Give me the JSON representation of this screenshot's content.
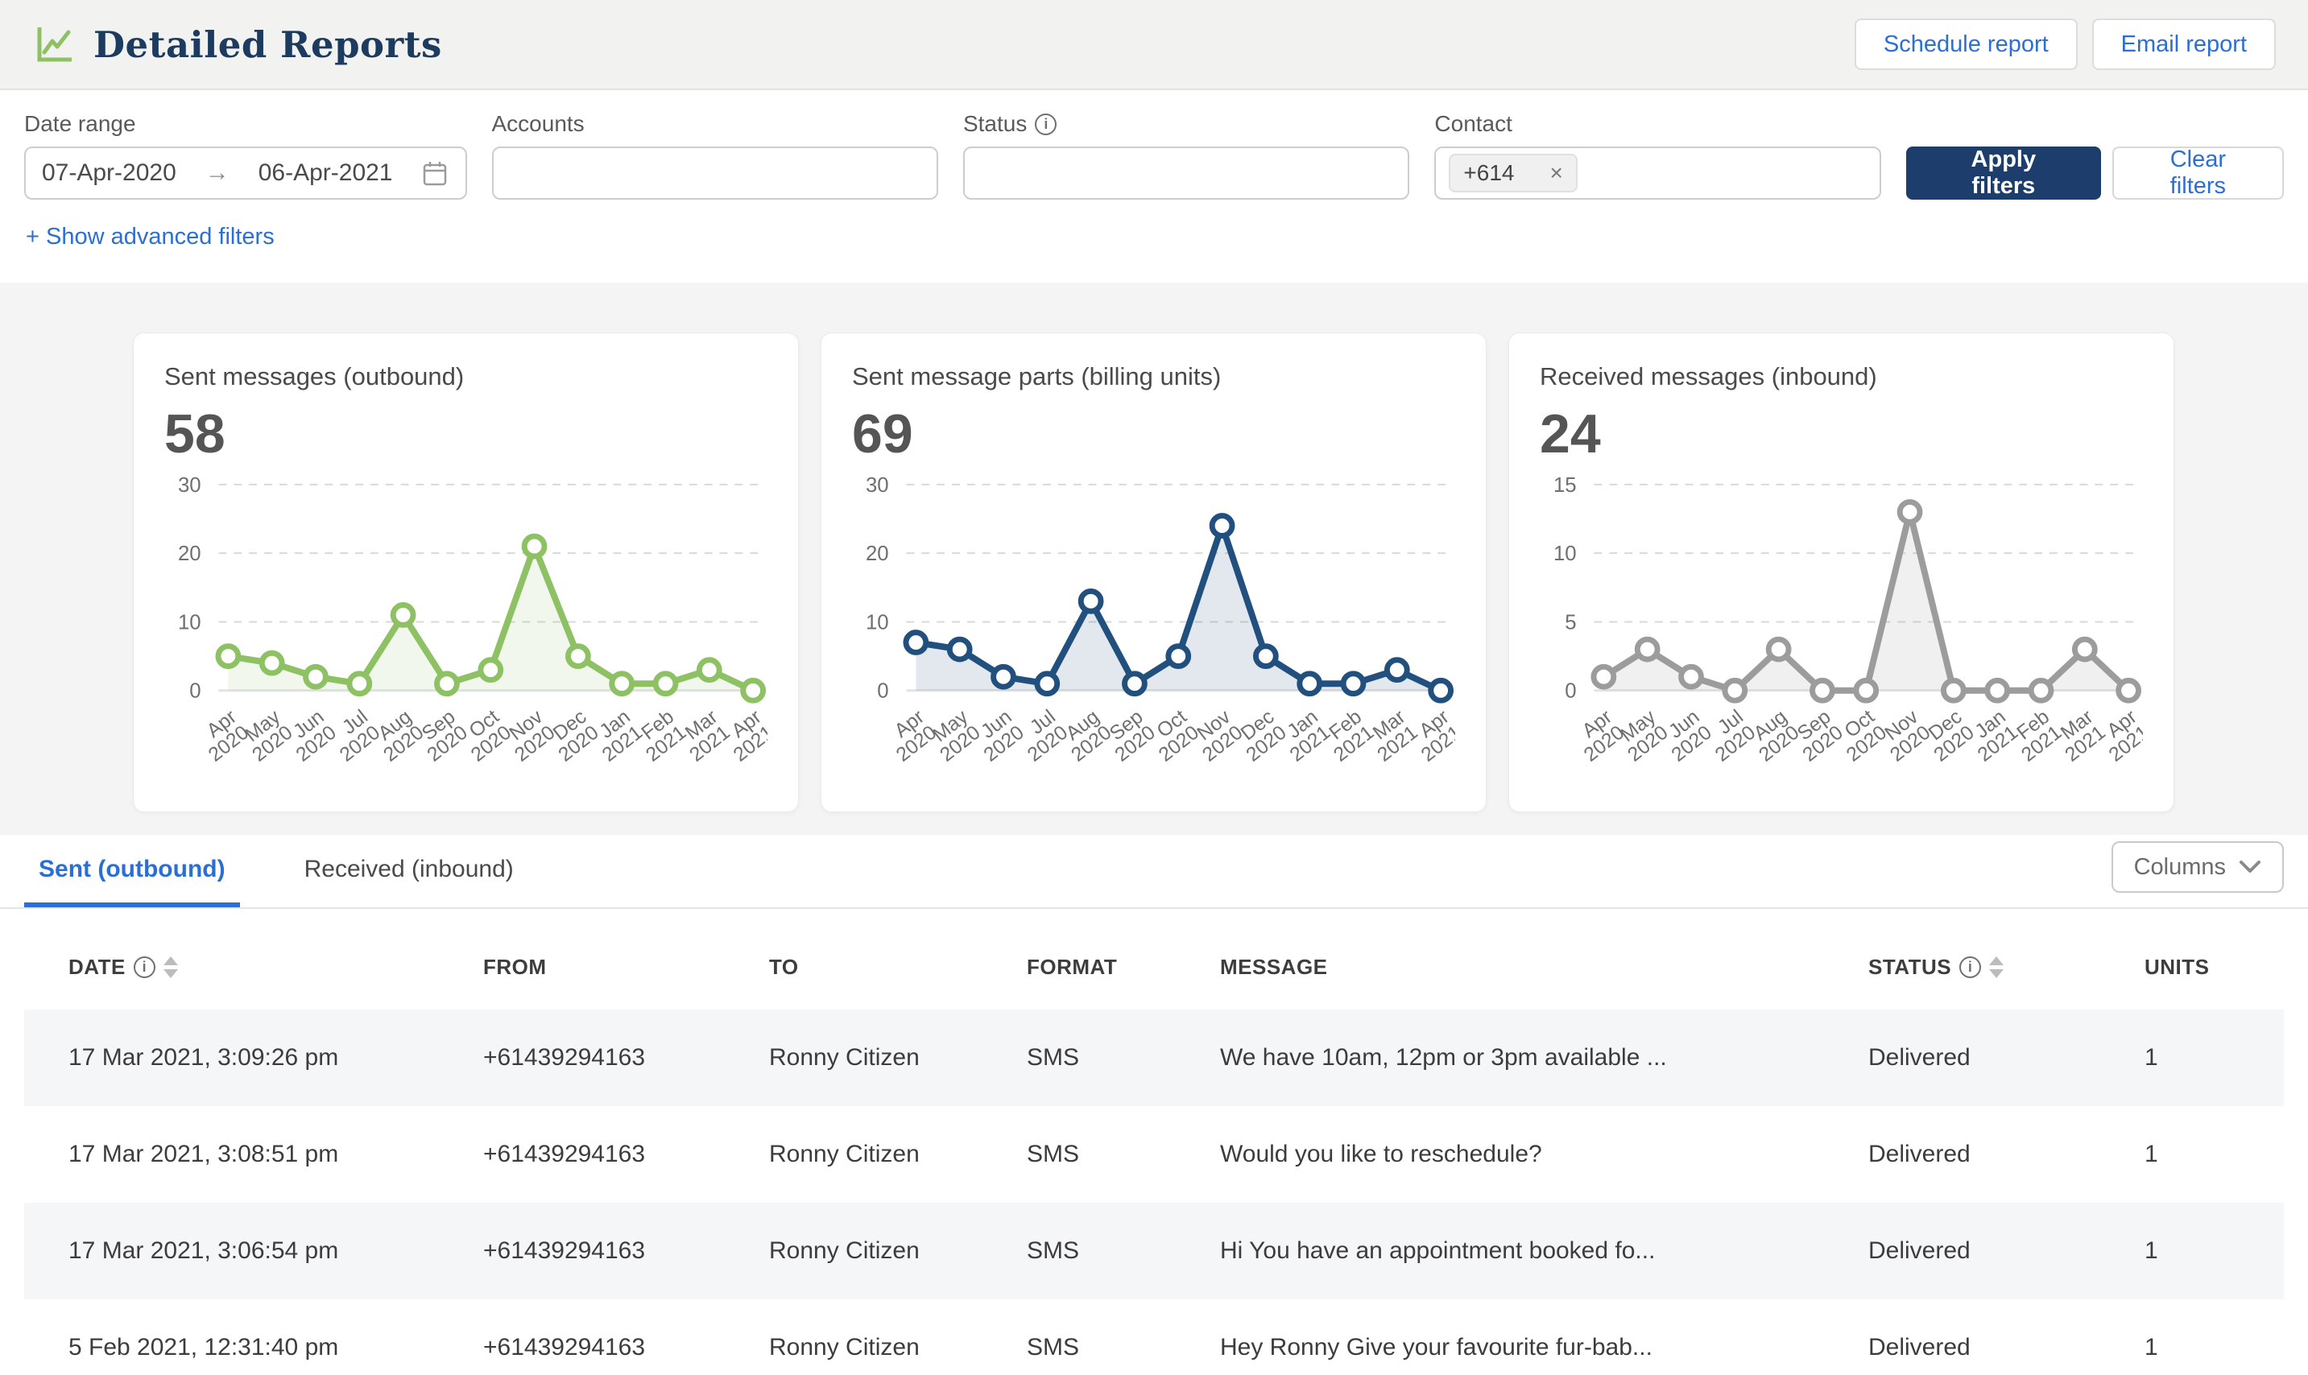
{
  "header": {
    "title": "Detailed Reports",
    "schedule_label": "Schedule report",
    "email_label": "Email report"
  },
  "filters": {
    "date_range": {
      "label": "Date range",
      "start": "07-Apr-2020",
      "arrow": "→",
      "end": "06-Apr-2021"
    },
    "accounts": {
      "label": "Accounts",
      "value": ""
    },
    "status": {
      "label": "Status",
      "value": ""
    },
    "contact": {
      "label": "Contact",
      "chip": "+614",
      "chip_remove": "×"
    },
    "apply_label": "Apply filters",
    "clear_label": "Clear filters",
    "advanced_label": "+ Show advanced filters"
  },
  "chart_data": [
    {
      "type": "line",
      "title": "Sent messages (outbound)",
      "total": "58",
      "color": "#8dc163",
      "fill": "rgba(141,193,99,0.12)",
      "categories": [
        "Apr 2020",
        "May 2020",
        "Jun 2020",
        "Jul 2020",
        "Aug 2020",
        "Sep 2020",
        "Oct 2020",
        "Nov 2020",
        "Dec 2020",
        "Jan 2021",
        "Feb 2021",
        "Mar 2021",
        "Apr 2021"
      ],
      "values": [
        5,
        4,
        2,
        1,
        11,
        1,
        3,
        21,
        5,
        1,
        1,
        3,
        0
      ],
      "ylim": [
        0,
        30
      ],
      "yticks": [
        0,
        10,
        20,
        30
      ],
      "xlabel": "",
      "ylabel": "",
      "grid": "dashed-horizontal",
      "legend": "none"
    },
    {
      "type": "line",
      "title": "Sent message parts (billing units)",
      "total": "69",
      "color": "#21507f",
      "fill": "rgba(33,80,127,0.13)",
      "categories": [
        "Apr 2020",
        "May 2020",
        "Jun 2020",
        "Jul 2020",
        "Aug 2020",
        "Sep 2020",
        "Oct 2020",
        "Nov 2020",
        "Dec 2020",
        "Jan 2021",
        "Feb 2021",
        "Mar 2021",
        "Apr 2021"
      ],
      "values": [
        7,
        6,
        2,
        1,
        13,
        1,
        5,
        24,
        5,
        1,
        1,
        3,
        0
      ],
      "ylim": [
        0,
        30
      ],
      "yticks": [
        0,
        10,
        20,
        30
      ],
      "xlabel": "",
      "ylabel": "",
      "grid": "dashed-horizontal",
      "legend": "none"
    },
    {
      "type": "line",
      "title": "Received messages (inbound)",
      "total": "24",
      "color": "#9c9c9c",
      "fill": "rgba(150,150,150,0.14)",
      "categories": [
        "Apr 2020",
        "May 2020",
        "Jun 2020",
        "Jul 2020",
        "Aug 2020",
        "Sep 2020",
        "Oct 2020",
        "Nov 2020",
        "Dec 2020",
        "Jan 2021",
        "Feb 2021",
        "Mar 2021",
        "Apr 2021"
      ],
      "values": [
        1,
        3,
        1,
        0,
        3,
        0,
        0,
        13,
        0,
        0,
        0,
        3,
        0
      ],
      "ylim": [
        0,
        15
      ],
      "yticks": [
        0,
        5,
        10,
        15
      ],
      "xlabel": "",
      "ylabel": "",
      "grid": "dashed-horizontal",
      "legend": "none"
    }
  ],
  "tabs": {
    "sent_label": "Sent (outbound)",
    "received_label": "Received (inbound)",
    "columns_label": "Columns"
  },
  "table": {
    "columns": [
      "DATE",
      "FROM",
      "TO",
      "FORMAT",
      "MESSAGE",
      "STATUS",
      "UNITS"
    ],
    "rows": [
      {
        "date": "17 Mar 2021, 3:09:26 pm",
        "from": "+61439294163",
        "to": "Ronny Citizen",
        "format": "SMS",
        "message": "We have 10am, 12pm or 3pm available ...",
        "status": "Delivered",
        "units": "1"
      },
      {
        "date": "17 Mar 2021, 3:08:51 pm",
        "from": "+61439294163",
        "to": "Ronny Citizen",
        "format": "SMS",
        "message": "Would you like to reschedule?",
        "status": "Delivered",
        "units": "1"
      },
      {
        "date": "17 Mar 2021, 3:06:54 pm",
        "from": "+61439294163",
        "to": "Ronny Citizen",
        "format": "SMS",
        "message": "Hi You have an appointment booked fo...",
        "status": "Delivered",
        "units": "1"
      },
      {
        "date": "5 Feb 2021, 12:31:40 pm",
        "from": "+61439294163",
        "to": "Ronny Citizen",
        "format": "SMS",
        "message": "Hey Ronny Give your favourite fur-bab...",
        "status": "Delivered",
        "units": "1"
      }
    ]
  }
}
